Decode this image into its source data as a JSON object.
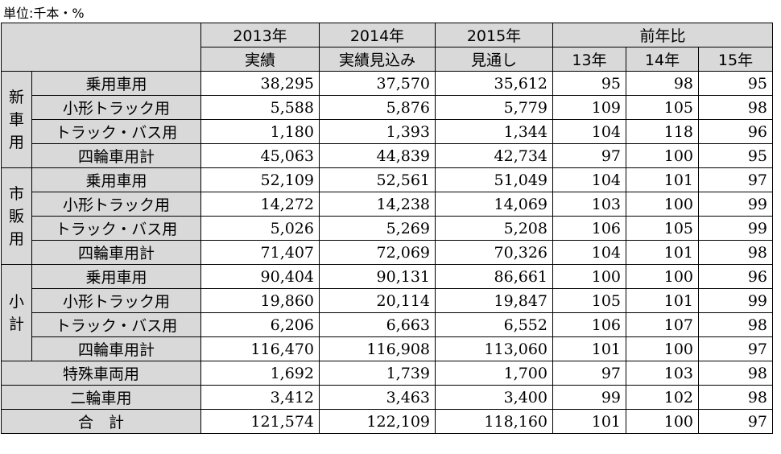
{
  "unit_label": "単位:千本・%",
  "header": {
    "y2013": "2013年",
    "y2014": "2014年",
    "y2015": "2015年",
    "ratio": "前年比",
    "actual": "実績",
    "estimate": "実績見込み",
    "outlook": "見通し",
    "r13": "13年",
    "r14": "14年",
    "r15": "15年"
  },
  "groups": [
    {
      "label": "新車用",
      "rows": [
        {
          "label": "乗用車用",
          "v2013": "38,295",
          "v2014": "37,570",
          "v2015": "35,612",
          "r13": "95",
          "r14": "98",
          "r15": "95"
        },
        {
          "label": "小形トラック用",
          "v2013": "5,588",
          "v2014": "5,876",
          "v2015": "5,779",
          "r13": "109",
          "r14": "105",
          "r15": "98"
        },
        {
          "label": "トラック・バス用",
          "v2013": "1,180",
          "v2014": "1,393",
          "v2015": "1,344",
          "r13": "104",
          "r14": "118",
          "r15": "96"
        },
        {
          "label": "四輪車用計",
          "v2013": "45,063",
          "v2014": "44,839",
          "v2015": "42,734",
          "r13": "97",
          "r14": "100",
          "r15": "95"
        }
      ]
    },
    {
      "label": "市販用",
      "rows": [
        {
          "label": "乗用車用",
          "v2013": "52,109",
          "v2014": "52,561",
          "v2015": "51,049",
          "r13": "104",
          "r14": "101",
          "r15": "97"
        },
        {
          "label": "小形トラック用",
          "v2013": "14,272",
          "v2014": "14,238",
          "v2015": "14,069",
          "r13": "103",
          "r14": "100",
          "r15": "99"
        },
        {
          "label": "トラック・バス用",
          "v2013": "5,026",
          "v2014": "5,269",
          "v2015": "5,208",
          "r13": "106",
          "r14": "105",
          "r15": "99"
        },
        {
          "label": "四輪車用計",
          "v2013": "71,407",
          "v2014": "72,069",
          "v2015": "70,326",
          "r13": "104",
          "r14": "101",
          "r15": "98"
        }
      ]
    },
    {
      "label": "小計",
      "rows": [
        {
          "label": "乗用車用",
          "v2013": "90,404",
          "v2014": "90,131",
          "v2015": "86,661",
          "r13": "100",
          "r14": "100",
          "r15": "96"
        },
        {
          "label": "小形トラック用",
          "v2013": "19,860",
          "v2014": "20,114",
          "v2015": "19,847",
          "r13": "105",
          "r14": "101",
          "r15": "99"
        },
        {
          "label": "トラック・バス用",
          "v2013": "6,206",
          "v2014": "6,663",
          "v2015": "6,552",
          "r13": "106",
          "r14": "107",
          "r15": "98"
        },
        {
          "label": "四輪車用計",
          "v2013": "116,470",
          "v2014": "116,908",
          "v2015": "113,060",
          "r13": "101",
          "r14": "100",
          "r15": "97"
        }
      ]
    }
  ],
  "extra_rows": [
    {
      "label": "特殊車両用",
      "v2013": "1,692",
      "v2014": "1,739",
      "v2015": "1,700",
      "r13": "97",
      "r14": "103",
      "r15": "98"
    },
    {
      "label": "二輪車用",
      "v2013": "3,412",
      "v2014": "3,463",
      "v2015": "3,400",
      "r13": "99",
      "r14": "102",
      "r15": "98"
    },
    {
      "label": "合　計",
      "v2013": "121,574",
      "v2014": "122,109",
      "v2015": "118,160",
      "r13": "101",
      "r14": "100",
      "r15": "97"
    }
  ]
}
